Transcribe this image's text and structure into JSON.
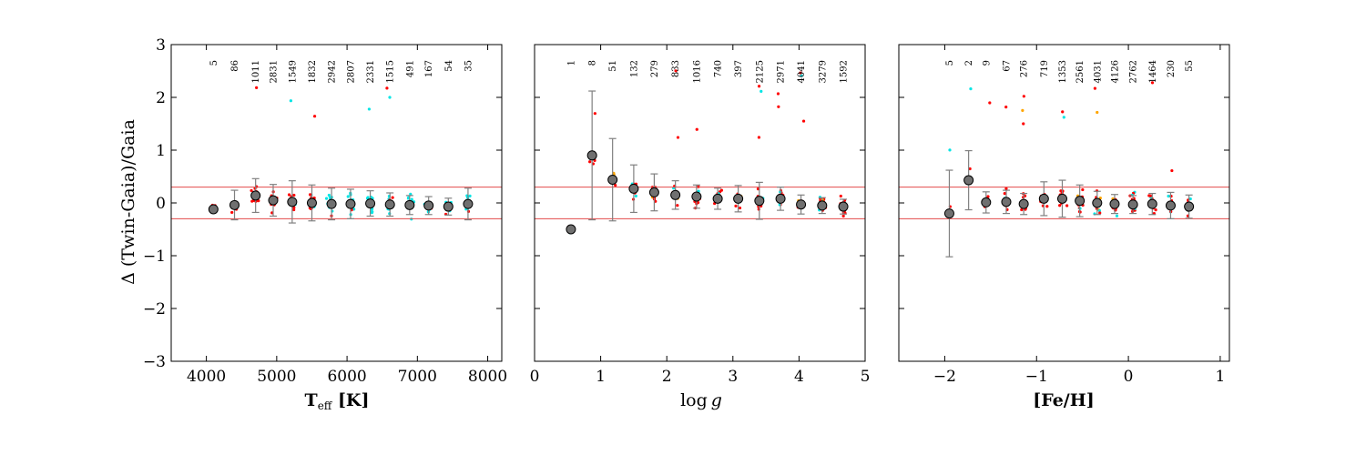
{
  "chart_data": {
    "type": "scatter",
    "ylabel": "Δ (Twin-Gaia)/Gaia",
    "ylim": [
      -3,
      3
    ],
    "yticks": [
      -3,
      -2,
      -1,
      0,
      1,
      2,
      3
    ],
    "ytick_labels": [
      "−3",
      "−2",
      "−1",
      "0",
      "1",
      "2",
      "3"
    ],
    "reference_lines": [
      0.3,
      -0.3
    ],
    "colors": {
      "points_red": "#ff0000",
      "points_cyan": "#00e5e5",
      "points_orange": "#ffa500",
      "binned_marker": "#707070",
      "errorbar": "#808080",
      "reference_line": "#e34a4a"
    },
    "panels": [
      {
        "xlabel_main": "T",
        "xlabel_sub": "eff",
        "xlabel_unit": " [K]",
        "xlim": [
          3500,
          8200
        ],
        "xticks": [
          4000,
          5000,
          6000,
          7000,
          8000
        ],
        "xtick_labels": [
          "4000",
          "5000",
          "6000",
          "7000",
          "8000"
        ],
        "binned": [
          {
            "x": 4100,
            "y": -0.12,
            "err": 0.0,
            "n": "5"
          },
          {
            "x": 4400,
            "y": -0.04,
            "err": 0.28,
            "n": "86"
          },
          {
            "x": 4700,
            "y": 0.14,
            "err": 0.32,
            "n": "1011"
          },
          {
            "x": 4950,
            "y": 0.05,
            "err": 0.3,
            "n": "2831"
          },
          {
            "x": 5220,
            "y": 0.02,
            "err": 0.4,
            "n": "1549"
          },
          {
            "x": 5500,
            "y": 0.0,
            "err": 0.34,
            "n": "1832"
          },
          {
            "x": 5780,
            "y": -0.02,
            "err": 0.3,
            "n": "2942"
          },
          {
            "x": 6050,
            "y": -0.02,
            "err": 0.28,
            "n": "2807"
          },
          {
            "x": 6330,
            "y": -0.01,
            "err": 0.24,
            "n": "2331"
          },
          {
            "x": 6610,
            "y": -0.03,
            "err": 0.22,
            "n": "1515"
          },
          {
            "x": 6890,
            "y": -0.04,
            "err": 0.18,
            "n": "491"
          },
          {
            "x": 7160,
            "y": -0.05,
            "err": 0.17,
            "n": "167"
          },
          {
            "x": 7440,
            "y": -0.07,
            "err": 0.16,
            "n": "54"
          },
          {
            "x": 7720,
            "y": -0.02,
            "err": 0.3,
            "n": "35"
          }
        ]
      },
      {
        "xlabel_main": "log",
        "xlabel_italic": "g",
        "xlim": [
          0,
          5
        ],
        "xticks": [
          0,
          1,
          2,
          3,
          4,
          5
        ],
        "xtick_labels": [
          "0",
          "1",
          "2",
          "3",
          "4",
          "5"
        ],
        "binned": [
          {
            "x": 0.55,
            "y": -0.5,
            "err": 0.0,
            "n": "1"
          },
          {
            "x": 0.87,
            "y": 0.9,
            "err": 1.22,
            "n": "8"
          },
          {
            "x": 1.18,
            "y": 0.44,
            "err": 0.78,
            "n": "51"
          },
          {
            "x": 1.5,
            "y": 0.27,
            "err": 0.45,
            "n": "132"
          },
          {
            "x": 1.81,
            "y": 0.2,
            "err": 0.35,
            "n": "279"
          },
          {
            "x": 2.13,
            "y": 0.15,
            "err": 0.27,
            "n": "833"
          },
          {
            "x": 2.45,
            "y": 0.12,
            "err": 0.22,
            "n": "1016"
          },
          {
            "x": 2.77,
            "y": 0.08,
            "err": 0.2,
            "n": "740"
          },
          {
            "x": 3.08,
            "y": 0.08,
            "err": 0.25,
            "n": "397"
          },
          {
            "x": 3.4,
            "y": 0.04,
            "err": 0.35,
            "n": "2125"
          },
          {
            "x": 3.72,
            "y": 0.08,
            "err": 0.22,
            "n": "2971"
          },
          {
            "x": 4.03,
            "y": -0.03,
            "err": 0.18,
            "n": "4041"
          },
          {
            "x": 4.35,
            "y": -0.05,
            "err": 0.15,
            "n": "3279"
          },
          {
            "x": 4.67,
            "y": -0.07,
            "err": 0.14,
            "n": "1592"
          }
        ]
      },
      {
        "xlabel_main": "[Fe/H]",
        "xlim": [
          -2.5,
          1.1
        ],
        "xticks": [
          -2,
          -1,
          0,
          1
        ],
        "xtick_labels": [
          "−2",
          "−1",
          "0",
          "1"
        ],
        "binned": [
          {
            "x": -1.95,
            "y": -0.2,
            "err": 0.82,
            "n": "5"
          },
          {
            "x": -1.74,
            "y": 0.43,
            "err": 0.56,
            "n": "2"
          },
          {
            "x": -1.55,
            "y": 0.01,
            "err": 0.2,
            "n": "9"
          },
          {
            "x": -1.33,
            "y": 0.02,
            "err": 0.22,
            "n": "67"
          },
          {
            "x": -1.14,
            "y": -0.02,
            "err": 0.2,
            "n": "276"
          },
          {
            "x": -0.92,
            "y": 0.08,
            "err": 0.32,
            "n": "719"
          },
          {
            "x": -0.72,
            "y": 0.08,
            "err": 0.35,
            "n": "1353"
          },
          {
            "x": -0.53,
            "y": 0.04,
            "err": 0.3,
            "n": "2561"
          },
          {
            "x": -0.34,
            "y": 0.0,
            "err": 0.22,
            "n": "4031"
          },
          {
            "x": -0.15,
            "y": -0.02,
            "err": 0.18,
            "n": "4126"
          },
          {
            "x": 0.05,
            "y": -0.03,
            "err": 0.17,
            "n": "2762"
          },
          {
            "x": 0.26,
            "y": -0.02,
            "err": 0.2,
            "n": "1464"
          },
          {
            "x": 0.46,
            "y": -0.05,
            "err": 0.25,
            "n": "230"
          },
          {
            "x": 0.66,
            "y": -0.07,
            "err": 0.22,
            "n": "55"
          }
        ]
      }
    ]
  }
}
